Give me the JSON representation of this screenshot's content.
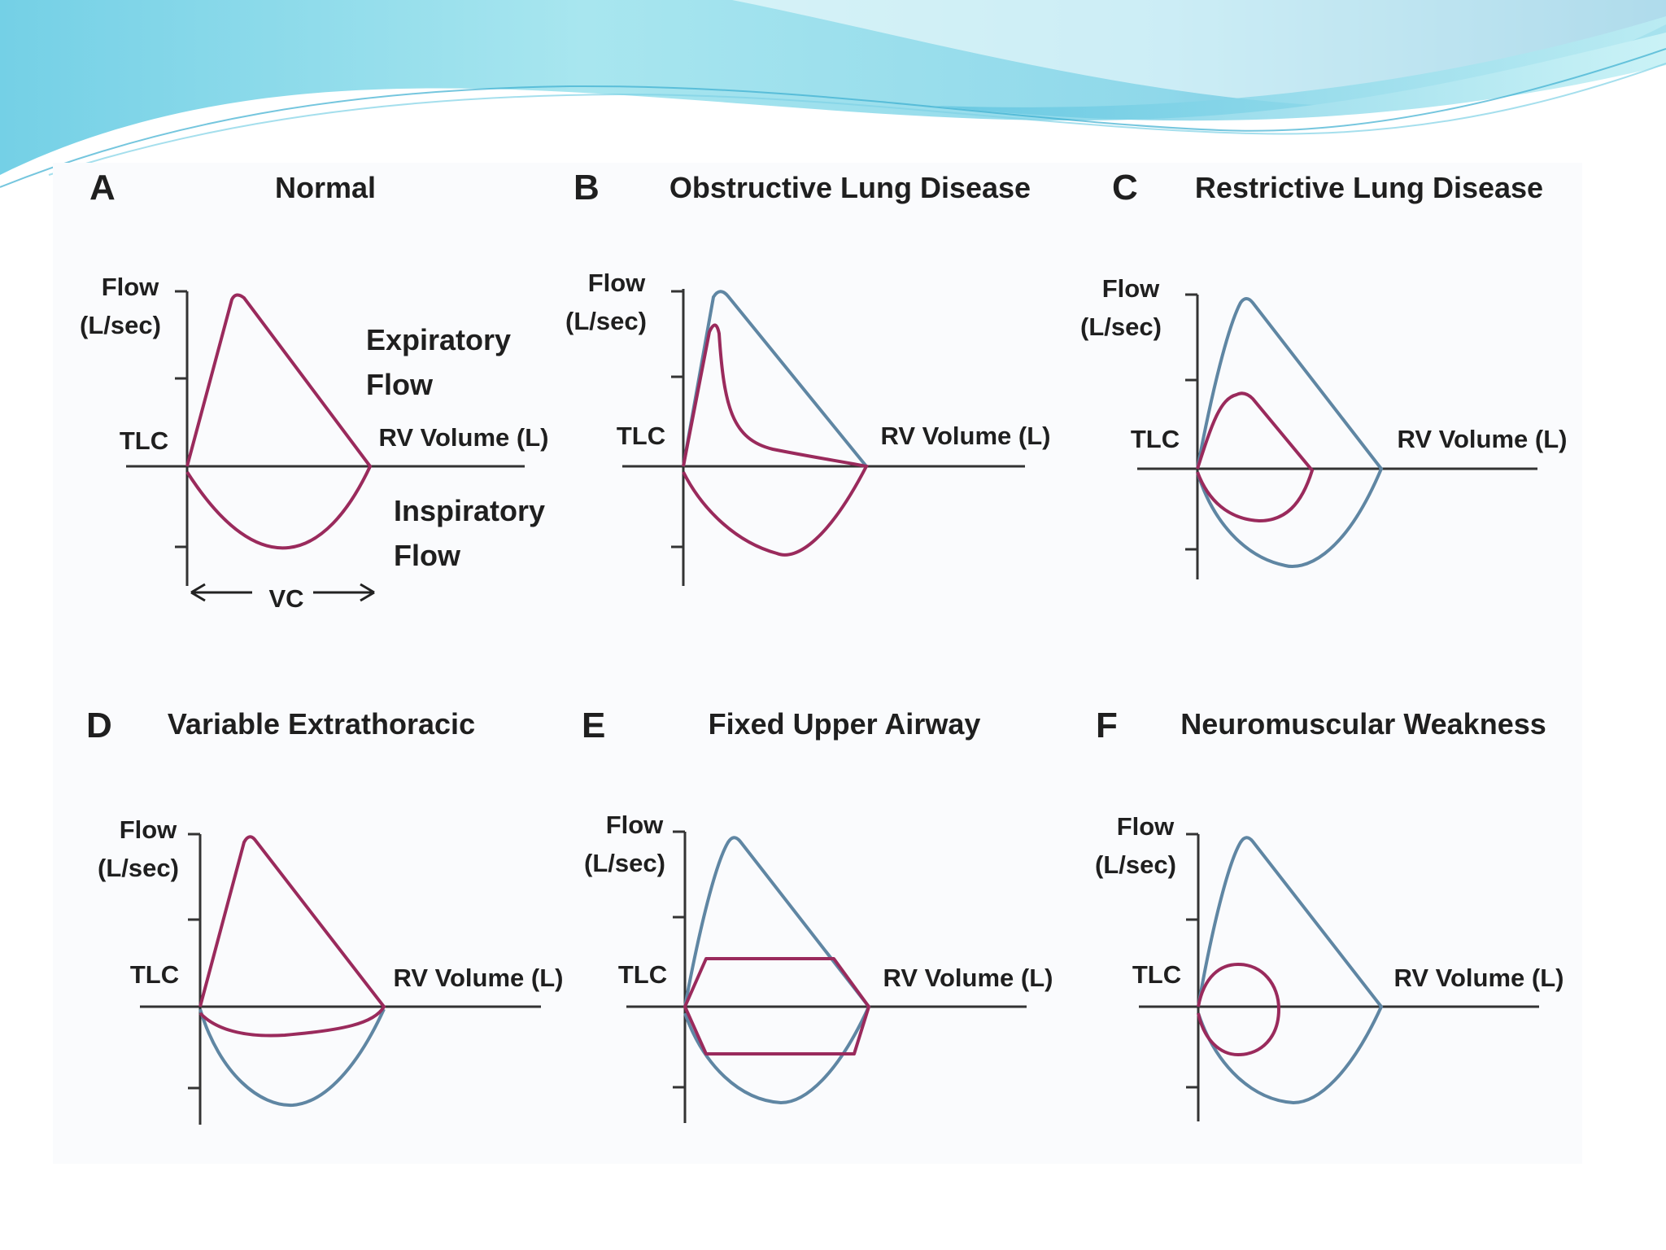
{
  "colors": {
    "curve_patient": "#9a2a5c",
    "curve_normal": "#5f86a3",
    "axis": "#333333",
    "banner_light": "#a6e6ee",
    "banner_dark": "#4fb4d4"
  },
  "panels": [
    {
      "letter": "A",
      "title": "Normal",
      "flow_label_line1": "Flow",
      "flow_label_line2": "(L/sec)",
      "tlc_label": "TLC",
      "rv_label": "RV Volume (L)",
      "expiratory_line1": "Expiratory",
      "expiratory_line2": "Flow",
      "inspiratory_line1": "Inspiratory",
      "inspiratory_line2": "Flow",
      "vc_label": "VC"
    },
    {
      "letter": "B",
      "title": "Obstructive Lung Disease",
      "flow_label_line1": "Flow",
      "flow_label_line2": "(L/sec)",
      "tlc_label": "TLC",
      "rv_label": "RV Volume (L)"
    },
    {
      "letter": "C",
      "title": "Restrictive Lung Disease",
      "flow_label_line1": "Flow",
      "flow_label_line2": "(L/sec)",
      "tlc_label": "TLC",
      "rv_label": "RV Volume (L)"
    },
    {
      "letter": "D",
      "title": "Variable Extrathoracic",
      "flow_label_line1": "Flow",
      "flow_label_line2": "(L/sec)",
      "tlc_label": "TLC",
      "rv_label": "RV Volume (L)"
    },
    {
      "letter": "E",
      "title": "Fixed Upper Airway",
      "flow_label_line1": "Flow",
      "flow_label_line2": "(L/sec)",
      "tlc_label": "TLC",
      "rv_label": "RV Volume (L)"
    },
    {
      "letter": "F",
      "title": "Neuromuscular Weakness",
      "flow_label_line1": "Flow",
      "flow_label_line2": "(L/sec)",
      "tlc_label": "TLC",
      "rv_label": "RV Volume (L)"
    }
  ]
}
